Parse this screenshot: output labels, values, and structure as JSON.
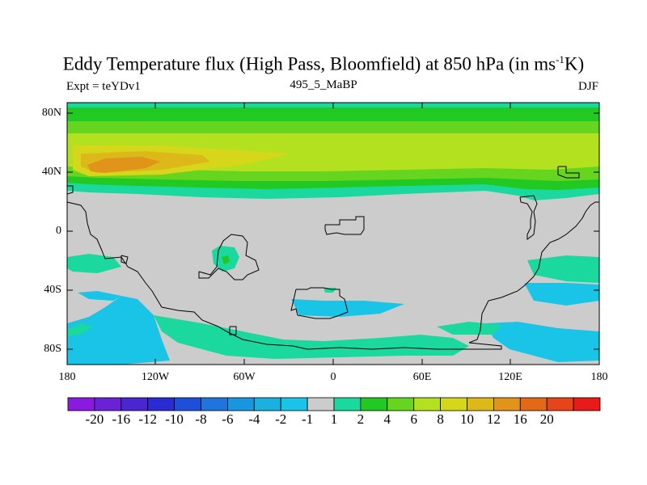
{
  "title": {
    "main": "Eddy Temperature flux (High Pass, Bloomfield) at 850 hPa (in ms",
    "sup": "-1",
    "unit_end": "K)"
  },
  "subtitle": {
    "left": "Expt = teYDv1",
    "center": "495_5_MaBP",
    "right": "DJF"
  },
  "axes": {
    "y_ticks": [
      "80N",
      "40N",
      "0",
      "40S",
      "80S"
    ],
    "x_ticks": [
      "180",
      "120W",
      "60W",
      "0",
      "60E",
      "120E",
      "180"
    ]
  },
  "colorbar": {
    "colors": [
      "#8a1ae0",
      "#6b21d6",
      "#4a26d0",
      "#2b2bd3",
      "#1d4fd8",
      "#2174dc",
      "#1a96df",
      "#1ab1e0",
      "#1ac4e6",
      "#cccccc",
      "#1ad89e",
      "#22c922",
      "#66d51f",
      "#b3e01f",
      "#d6d61a",
      "#dcb81a",
      "#e0941a",
      "#e26a17",
      "#e6441a",
      "#e81a1a"
    ],
    "labels": [
      "-20",
      "-16",
      "-12",
      "-10",
      "-8",
      "-6",
      "-4",
      "-2",
      "-1",
      "1",
      "2",
      "4",
      "6",
      "8",
      "10",
      "12",
      "16",
      "20"
    ]
  },
  "field_colors": {
    "background": "#cccccc",
    "lvl2": "#1ad89e",
    "lvl4": "#22c922",
    "lvl6": "#66d51f",
    "lvl8": "#b3e01f",
    "lvl10": "#d6d61a",
    "lvl12": "#dcb81a",
    "lvl16": "#e0941a",
    "neg1": "#1ac4e6",
    "neg2": "#1ab1e0"
  }
}
